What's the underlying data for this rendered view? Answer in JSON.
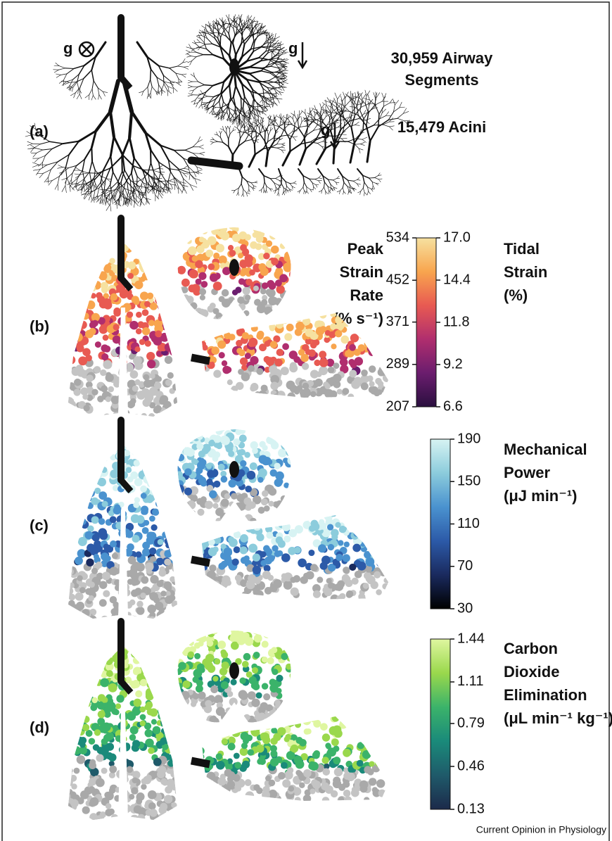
{
  "panel_labels": [
    "(a)",
    "(b)",
    "(c)",
    "(d)"
  ],
  "panel_a": {
    "gravity": [
      "g",
      "g",
      "g"
    ],
    "airway_segments": [
      "30,959 Airway",
      "Segments"
    ],
    "acini": "15,479 Acini"
  },
  "colorbars": [
    {
      "colors": [
        "#2a0f3f",
        "#6b1d6e",
        "#b02e6e",
        "#e85a52",
        "#f8a54e",
        "#f6e1a0"
      ],
      "axes": [
        {
          "side": "left",
          "title": [
            "Peak",
            "Strain",
            "Rate",
            "(% s⁻¹)"
          ],
          "ylim": [
            207,
            534
          ],
          "ticks": [
            534,
            452,
            371,
            289,
            207
          ]
        },
        {
          "side": "right",
          "title": [
            "Tidal",
            "Strain",
            "(%)"
          ],
          "ylim": [
            6.6,
            17
          ],
          "ticks": [
            {
              "value": 17,
              "label": "17.0"
            },
            14.4,
            11.8,
            9.2,
            6.6
          ]
        }
      ]
    },
    {
      "colors": [
        "#000000",
        "#1a2a5e",
        "#2c5aa8",
        "#4a92cf",
        "#8cccdc",
        "#d7f3f3"
      ],
      "axes": [
        {
          "side": "right",
          "title": [
            "Mechanical",
            "Power",
            "(μJ min⁻¹)"
          ],
          "ylim": [
            30,
            190
          ],
          "ticks": [
            190,
            150,
            110,
            70,
            30
          ]
        }
      ]
    },
    {
      "colors": [
        "#1c2a4a",
        "#1f5a6a",
        "#1a8a7a",
        "#3bb36a",
        "#9ad84c",
        "#dff6a0"
      ],
      "axes": [
        {
          "side": "right",
          "title": [
            "Carbon",
            "Dioxide",
            "Elimination",
            "(μL min⁻¹ kg⁻¹)"
          ],
          "ylim": [
            0.13,
            1.44
          ],
          "ticks": [
            1.44,
            1.11,
            0.79,
            0.46,
            0.13
          ]
        }
      ]
    }
  ],
  "footer": "Current Opinion in Physiology"
}
